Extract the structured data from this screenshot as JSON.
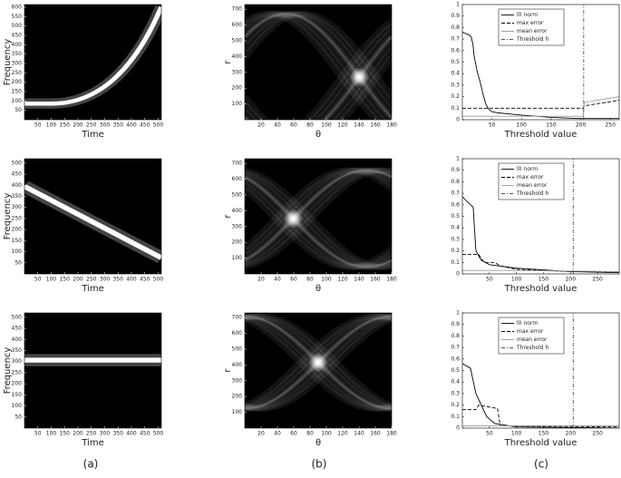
{
  "chart_data": [
    {
      "type": "image",
      "xlabel": "Time",
      "ylabel": "Frequency",
      "xlim": [
        0,
        512
      ],
      "ylim": [
        0,
        615
      ],
      "xticks": [
        50,
        100,
        150,
        200,
        250,
        300,
        350,
        400,
        450,
        500
      ],
      "yticks": [
        50,
        100,
        150,
        200,
        250,
        300,
        350,
        400,
        450,
        500,
        550,
        600
      ]
    },
    {
      "type": "image",
      "xlabel": "θ",
      "ylabel": "r",
      "xlim": [
        0,
        180
      ],
      "ylim": [
        0,
        730
      ],
      "xticks": [
        20,
        40,
        60,
        80,
        100,
        120,
        140,
        160,
        180
      ],
      "yticks": [
        100,
        200,
        300,
        400,
        500,
        600,
        700
      ]
    },
    {
      "type": "line",
      "xlabel": "Threshold value",
      "xlim": [
        0,
        265
      ],
      "ylim": [
        0,
        1
      ],
      "xticks": [
        50,
        100,
        150,
        200,
        250
      ],
      "yticks": [
        0,
        0.1,
        0.2,
        0.3,
        0.4,
        0.5,
        0.6,
        0.7,
        0.8,
        0.9,
        1
      ],
      "legend": "upper center",
      "series": [
        {
          "name": "l0 norm",
          "color": "#000000",
          "dash": "solid",
          "x": [
            0,
            5,
            10,
            15,
            18,
            20,
            25,
            30,
            35,
            40,
            45,
            50,
            60,
            80,
            100,
            150,
            200,
            265
          ],
          "values": [
            0.76,
            0.75,
            0.74,
            0.72,
            0.65,
            0.55,
            0.42,
            0.33,
            0.22,
            0.13,
            0.09,
            0.07,
            0.06,
            0.05,
            0.04,
            0.02,
            0.01,
            0.01
          ]
        },
        {
          "name": "max error",
          "color": "#000000",
          "dash": "dashed",
          "x": [
            0,
            204,
            206,
            265
          ],
          "values": [
            0.1,
            0.1,
            0.12,
            0.17
          ]
        },
        {
          "name": "mean error",
          "color": "#999999",
          "dash": "solid",
          "x": [
            0,
            204,
            206,
            265
          ],
          "values": [
            0.03,
            0.03,
            0.15,
            0.2
          ]
        },
        {
          "name": "Threshold h",
          "color": "#555555",
          "dash": "dashdot",
          "x": [
            205,
            205
          ],
          "values": [
            0,
            1
          ]
        }
      ]
    },
    {
      "type": "image",
      "xlabel": "Time",
      "ylabel": "Frequency",
      "xlim": [
        0,
        512
      ],
      "ylim": [
        0,
        520
      ],
      "xticks": [
        50,
        100,
        150,
        200,
        250,
        300,
        350,
        400,
        450,
        500
      ],
      "yticks": [
        50,
        100,
        150,
        200,
        250,
        300,
        350,
        400,
        450,
        500
      ]
    },
    {
      "type": "image",
      "xlabel": "θ",
      "ylabel": "r",
      "xlim": [
        0,
        180
      ],
      "ylim": [
        0,
        730
      ],
      "xticks": [
        20,
        40,
        60,
        80,
        100,
        120,
        140,
        160,
        180
      ],
      "yticks": [
        100,
        200,
        300,
        400,
        500,
        600,
        700
      ]
    },
    {
      "type": "line",
      "xlabel": "Threshold value",
      "xlim": [
        0,
        290
      ],
      "ylim": [
        0,
        1
      ],
      "xticks": [
        50,
        100,
        150,
        200,
        250
      ],
      "yticks": [
        0,
        0.1,
        0.2,
        0.3,
        0.4,
        0.5,
        0.6,
        0.7,
        0.8,
        0.9,
        1
      ],
      "legend": "upper center",
      "series": [
        {
          "name": "l0 norm",
          "color": "#000000",
          "dash": "solid",
          "x": [
            0,
            15,
            20,
            25,
            35,
            50,
            100,
            200,
            290
          ],
          "values": [
            0.67,
            0.6,
            0.58,
            0.2,
            0.12,
            0.08,
            0.05,
            0.02,
            0.01
          ]
        },
        {
          "name": "max error",
          "color": "#000000",
          "dash": "dashed",
          "x": [
            0,
            30,
            40,
            60,
            70,
            100,
            200,
            290
          ],
          "values": [
            0.17,
            0.17,
            0.1,
            0.1,
            0.07,
            0.04,
            0.02,
            0.02
          ]
        },
        {
          "name": "mean error",
          "color": "#999999",
          "dash": "solid",
          "x": [
            0,
            100,
            290
          ],
          "values": [
            0.03,
            0.03,
            0.02
          ]
        },
        {
          "name": "Threshold h",
          "color": "#555555",
          "dash": "dashdot",
          "x": [
            205,
            205
          ],
          "values": [
            0,
            1
          ]
        }
      ]
    },
    {
      "type": "image",
      "xlabel": "Time",
      "ylabel": "Frequency",
      "xlim": [
        0,
        512
      ],
      "ylim": [
        0,
        520
      ],
      "xticks": [
        50,
        100,
        150,
        200,
        250,
        300,
        350,
        400,
        450,
        500
      ],
      "yticks": [
        50,
        100,
        150,
        200,
        250,
        300,
        350,
        400,
        450,
        500
      ]
    },
    {
      "type": "image",
      "xlabel": "θ",
      "ylabel": "r",
      "xlim": [
        0,
        180
      ],
      "ylim": [
        0,
        730
      ],
      "xticks": [
        20,
        40,
        60,
        80,
        100,
        120,
        140,
        160,
        180
      ],
      "yticks": [
        100,
        200,
        300,
        400,
        500,
        600,
        700
      ]
    },
    {
      "type": "line",
      "xlabel": "Threshold value",
      "xlim": [
        0,
        290
      ],
      "ylim": [
        0,
        1
      ],
      "xticks": [
        50,
        100,
        150,
        200,
        250
      ],
      "yticks": [
        0,
        0.1,
        0.2,
        0.3,
        0.4,
        0.5,
        0.6,
        0.7,
        0.8,
        0.9,
        1
      ],
      "legend": "upper center",
      "series": [
        {
          "name": "l0 norm",
          "color": "#000000",
          "dash": "solid",
          "x": [
            0,
            15,
            25,
            35,
            45,
            60,
            100,
            290
          ],
          "values": [
            0.56,
            0.52,
            0.3,
            0.2,
            0.1,
            0.04,
            0.01,
            0
          ]
        },
        {
          "name": "max error",
          "color": "#000000",
          "dash": "dashed",
          "x": [
            0,
            25,
            30,
            65,
            70,
            290
          ],
          "values": [
            0.16,
            0.16,
            0.2,
            0.17,
            0.02,
            0.01
          ]
        },
        {
          "name": "mean error",
          "color": "#999999",
          "dash": "solid",
          "x": [
            0,
            290
          ],
          "values": [
            0.02,
            0.02
          ]
        },
        {
          "name": "Threshold h",
          "color": "#555555",
          "dash": "dashdot",
          "x": [
            205,
            205
          ],
          "values": [
            0,
            1
          ]
        }
      ]
    }
  ],
  "captions": [
    "(a)",
    "(b)",
    "(c)"
  ]
}
